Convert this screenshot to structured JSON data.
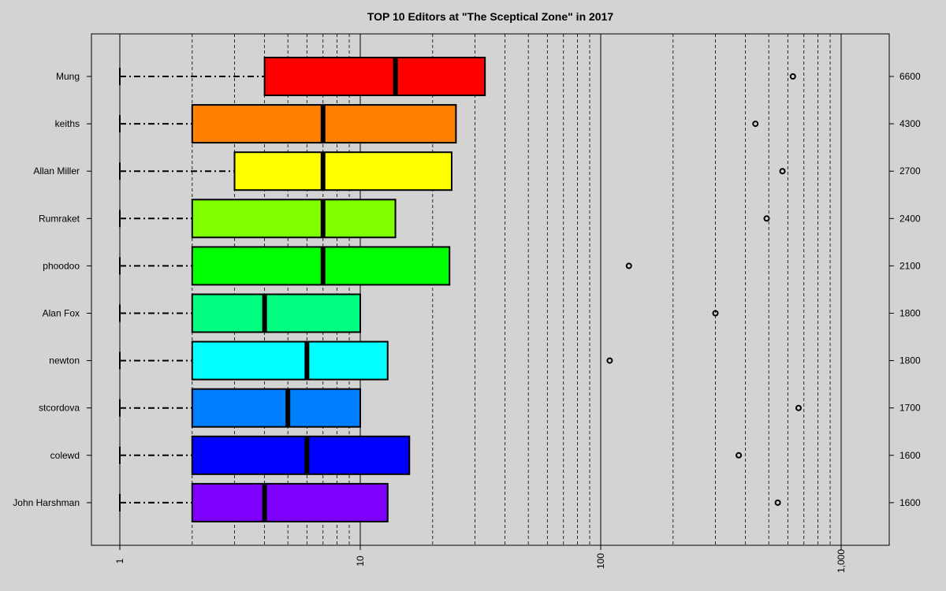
{
  "chart_data": {
    "type": "boxplot",
    "title": "TOP 10 Editors at \"The Sceptical Zone\" in 2017",
    "xscale": "log",
    "xlim": [
      0.77,
      1160
    ],
    "x_tick_labels": [
      "1",
      "10",
      "100",
      "1,000"
    ],
    "x_tick_values": [
      1,
      10,
      100,
      1000
    ],
    "orientation": "horizontal",
    "grid": "dashed vertical lines at 2-9, 20-90, 200-900",
    "categories": [
      "Mung",
      "keiths",
      "Allan Miller",
      "Rumraket",
      "phoodoo",
      "Alan Fox",
      "newton",
      "stcordova",
      "colewd",
      "John Harshman"
    ],
    "right_labels": [
      "6600",
      "4300",
      "2700",
      "2400",
      "2100",
      "1800",
      "1800",
      "1700",
      "1600",
      "1600"
    ],
    "boxes": [
      {
        "name": "Mung",
        "whisker_low": 1,
        "q1": 4,
        "median": 14,
        "q3": 33,
        "outlier": 630,
        "color": "#FF0000"
      },
      {
        "name": "keiths",
        "whisker_low": 1,
        "q1": 2,
        "median": 7,
        "q3": 25,
        "outlier": 440,
        "color": "#FF8000"
      },
      {
        "name": "Allan Miller",
        "whisker_low": 1,
        "q1": 3,
        "median": 7,
        "q3": 24,
        "outlier": 570,
        "color": "#FFFF00"
      },
      {
        "name": "Rumraket",
        "whisker_low": 1,
        "q1": 2,
        "median": 7,
        "q3": 14,
        "outlier": 490,
        "color": "#80FF00"
      },
      {
        "name": "phoodoo",
        "whisker_low": 1,
        "q1": 2,
        "median": 7,
        "q3": 23.5,
        "outlier": 131,
        "color": "#00FF00"
      },
      {
        "name": "Alan Fox",
        "whisker_low": 1,
        "q1": 2,
        "median": 4,
        "q3": 10,
        "outlier": 300,
        "color": "#00FF80"
      },
      {
        "name": "newton",
        "whisker_low": 1,
        "q1": 2,
        "median": 6,
        "q3": 13,
        "outlier": 109,
        "color": "#00FFFF"
      },
      {
        "name": "stcordova",
        "whisker_low": 1,
        "q1": 2,
        "median": 5,
        "q3": 10,
        "outlier": 665,
        "color": "#0080FF"
      },
      {
        "name": "colewd",
        "whisker_low": 1,
        "q1": 2,
        "median": 6,
        "q3": 16,
        "outlier": 375,
        "color": "#0000FF"
      },
      {
        "name": "John Harshman",
        "whisker_low": 1,
        "q1": 2,
        "median": 4,
        "q3": 13,
        "outlier": 545,
        "color": "#8000FF"
      }
    ]
  }
}
